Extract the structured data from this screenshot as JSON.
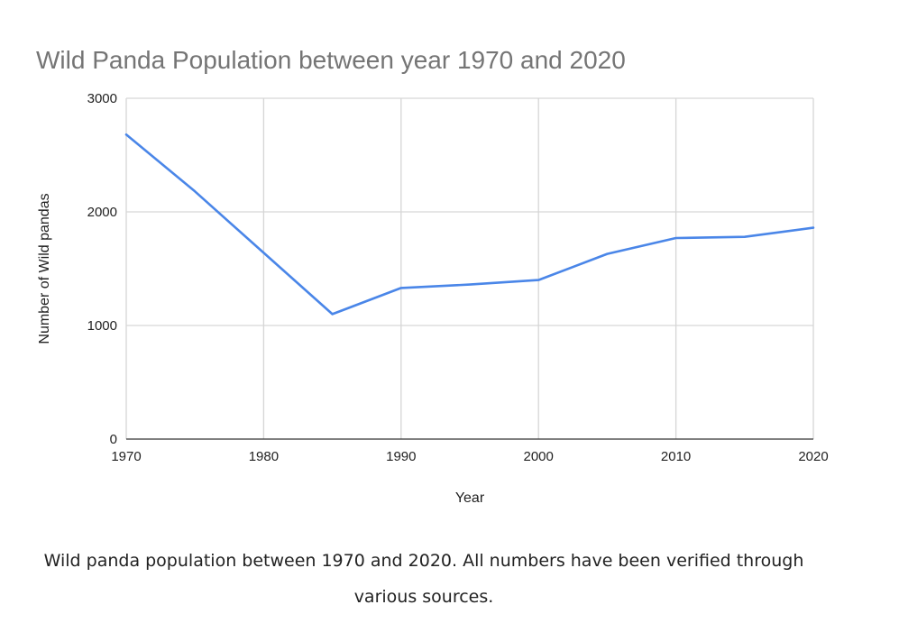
{
  "chart_data": {
    "type": "line",
    "title": "Wild Panda Population between year 1970 and 2020",
    "xlabel": "Year",
    "ylabel": "Number of Wild pandas",
    "x": [
      1970,
      1975,
      1980,
      1985,
      1990,
      1995,
      2000,
      2005,
      2010,
      2015,
      2020
    ],
    "series": [
      {
        "values": [
          2680,
          2180,
          1640,
          1100,
          1330,
          1360,
          1400,
          1630,
          1770,
          1780,
          1860
        ]
      }
    ],
    "xlim": [
      1970,
      2020
    ],
    "ylim": [
      0,
      3000
    ],
    "xticks": [
      1970,
      1980,
      1990,
      2000,
      2010,
      2020
    ],
    "yticks": [
      0,
      1000,
      2000,
      3000
    ],
    "grid": true,
    "line_color": "#4a86e8"
  },
  "caption": "Wild panda population between 1970 and 2020. All numbers have been verified through various sources."
}
